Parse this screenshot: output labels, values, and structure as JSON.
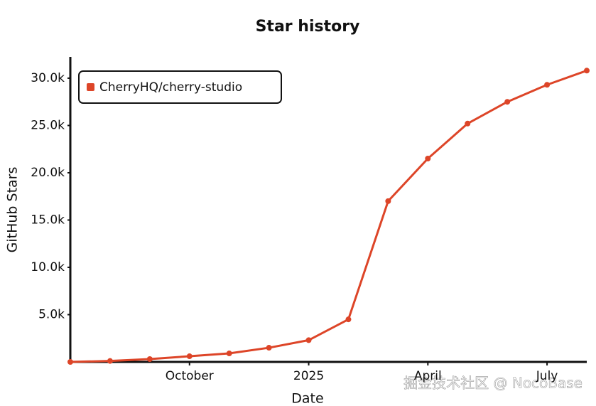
{
  "chart_data": {
    "type": "line",
    "title": "Star history",
    "x_label": "Date",
    "y_label": "GitHub Stars",
    "x": [
      "2024-07",
      "2024-08",
      "2024-09",
      "2024-10",
      "2024-11",
      "2024-12",
      "2025-01",
      "2025-02",
      "2025-03",
      "2025-04",
      "2025-05",
      "2025-06",
      "2025-07",
      "2025-08"
    ],
    "series": [
      {
        "name": "CherryHQ/cherry-studio",
        "color": "#dd4528",
        "values": [
          0,
          100,
          300,
          600,
          900,
          1500,
          2300,
          4500,
          17000,
          21500,
          25200,
          27500,
          29300,
          30800
        ]
      }
    ],
    "xlim": [
      "2024-07",
      "2025-08"
    ],
    "xticks": [
      {
        "value": "2024-10",
        "label": "October"
      },
      {
        "value": "2025-01",
        "label": "2025"
      },
      {
        "value": "2025-04",
        "label": "April"
      },
      {
        "value": "2025-07",
        "label": "July"
      }
    ],
    "ylim": [
      0,
      31500
    ],
    "yticks": [
      {
        "value": 5000,
        "label": "5.0k"
      },
      {
        "value": 10000,
        "label": "10.0k"
      },
      {
        "value": 15000,
        "label": "15.0k"
      },
      {
        "value": 20000,
        "label": "20.0k"
      },
      {
        "value": 25000,
        "label": "25.0k"
      },
      {
        "value": 30000,
        "label": "30.0k"
      }
    ],
    "legend": "top-left",
    "grid": false,
    "watermark": "掘金技术社区 @ NocoBase"
  }
}
